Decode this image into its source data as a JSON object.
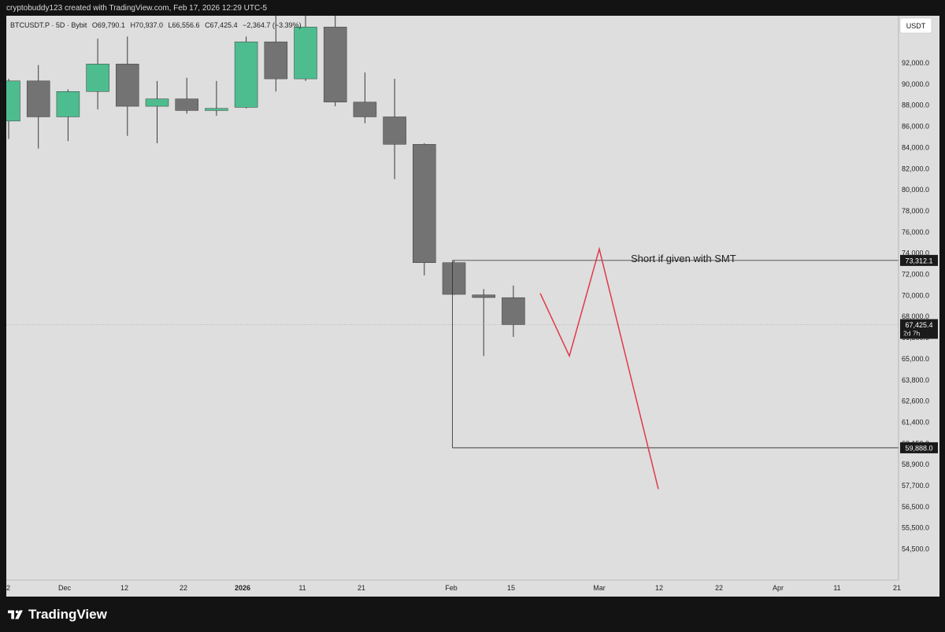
{
  "header": {
    "attribution": "cryptobuddy123 created with TradingView.com, Feb 17, 2026 12:29 UTC-5"
  },
  "footer": {
    "brand": "TradingView",
    "logo_icon": "tradingview-logo-icon"
  },
  "chart_data": {
    "type": "candlestick",
    "symbol_info": {
      "symbol": "BTCUSDT.P · 5D · Bybit",
      "open": "O69,790.1",
      "high": "H70,937.0",
      "low": "L66,556.6",
      "close": "C67,425.4",
      "change": "−2,364.7 (−3.39%)"
    },
    "currency": "USDT",
    "x_ticks": [
      "2",
      "Dec",
      "12",
      "22",
      "2026",
      "11",
      "21",
      "Feb",
      "15",
      "Mar",
      "12",
      "22",
      "Apr",
      "11",
      "21"
    ],
    "y_ticks": [
      "92,000.0",
      "90,000.0",
      "88,000.0",
      "86,000.0",
      "84,000.0",
      "82,000.0",
      "80,000.0",
      "78,000.0",
      "76,000.0",
      "74,000.0",
      "72,000.0",
      "70,000.0",
      "68,000.0",
      "66,500.0",
      "65,000.0",
      "63,800.0",
      "62,600.0",
      "61,400.0",
      "60,150.0",
      "58,900.0",
      "57,700.0",
      "56,500.0",
      "55,500.0",
      "54,500.0"
    ],
    "y_tick_values": [
      92000,
      90000,
      88000,
      86000,
      84000,
      82000,
      80000,
      78000,
      76000,
      74000,
      72000,
      70000,
      68000,
      66500,
      65000,
      63800,
      62600,
      61400,
      60150,
      58900,
      57700,
      56500,
      55500,
      54500
    ],
    "candles": [
      {
        "o": 86500,
        "h": 90500,
        "l": 84800,
        "c": 90300,
        "bull": true
      },
      {
        "o": 90300,
        "h": 91800,
        "l": 83900,
        "c": 86900,
        "bull": false
      },
      {
        "o": 86900,
        "h": 89500,
        "l": 84600,
        "c": 89300,
        "bull": true
      },
      {
        "o": 89300,
        "h": 94300,
        "l": 87600,
        "c": 91900,
        "bull": true
      },
      {
        "o": 91900,
        "h": 94500,
        "l": 85100,
        "c": 87900,
        "bull": false
      },
      {
        "o": 87900,
        "h": 90300,
        "l": 84400,
        "c": 88600,
        "bull": true
      },
      {
        "o": 88600,
        "h": 90600,
        "l": 87200,
        "c": 87500,
        "bull": false
      },
      {
        "o": 87500,
        "h": 90300,
        "l": 87000,
        "c": 87700,
        "bull": true
      },
      {
        "o": 87800,
        "h": 94500,
        "l": 87700,
        "c": 94000,
        "bull": true
      },
      {
        "o": 94000,
        "h": 97500,
        "l": 89300,
        "c": 90500,
        "bull": false
      },
      {
        "o": 90500,
        "h": 97900,
        "l": 90300,
        "c": 95400,
        "bull": true
      },
      {
        "o": 95400,
        "h": 97700,
        "l": 87900,
        "c": 88300,
        "bull": false
      },
      {
        "o": 88300,
        "h": 91100,
        "l": 86300,
        "c": 86900,
        "bull": false
      },
      {
        "o": 86900,
        "h": 90500,
        "l": 81000,
        "c": 84300,
        "bull": false
      },
      {
        "o": 84300,
        "h": 84400,
        "l": 71900,
        "c": 73100,
        "bull": false
      },
      {
        "o": 73100,
        "h": 73300,
        "l": 70050,
        "c": 70100,
        "bull": false
      },
      {
        "o": 70050,
        "h": 70600,
        "l": 65200,
        "c": 69800,
        "bull": false
      },
      {
        "o": 69790.1,
        "h": 70937,
        "l": 66556.6,
        "c": 67425.4,
        "bull": false
      }
    ],
    "levels": {
      "upper": {
        "value": 73312.1,
        "label": "73,312.1"
      },
      "lower": {
        "value": 59888.0,
        "label": "59,888.0"
      },
      "current": {
        "value": 67425.4,
        "label": "67,425.4",
        "countdown": "2d 7h"
      }
    },
    "annotation": "Short if given with SMT",
    "projection": [
      70200,
      65200,
      74400,
      57500
    ],
    "colors": {
      "bull": "#4dbd8f",
      "bear": "#737373",
      "projection": "#e0394a"
    }
  }
}
